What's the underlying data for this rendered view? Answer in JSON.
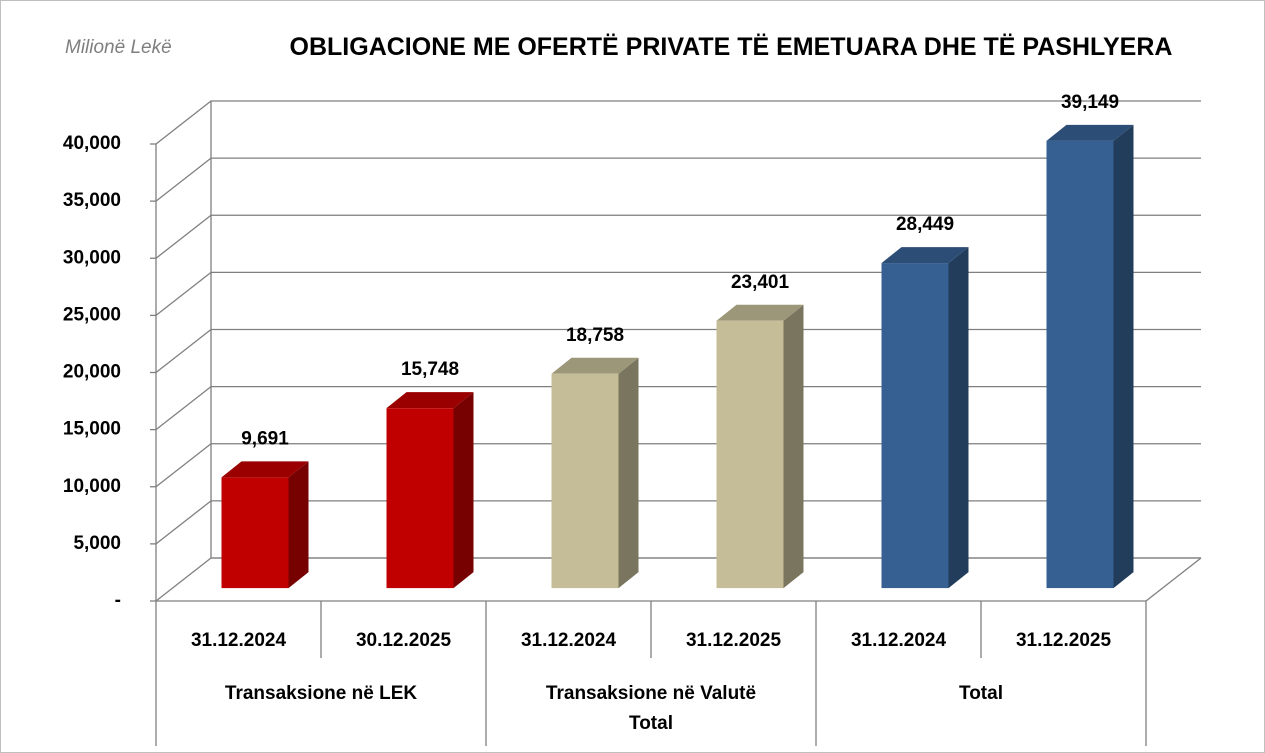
{
  "chart_data": {
    "type": "bar3d",
    "title": "OBLIGACIONE ME OFERTË PRIVATE TË EMETUARA DHE TË PASHLYERA",
    "y_label": "Milionë Lekë",
    "categories": [
      "31.12.2024",
      "30.12.2025",
      "31.12.2024",
      "31.12.2025",
      "31.12.2024",
      "31.12.2025"
    ],
    "groups": [
      "Transaksione në LEK",
      "Transaksione në Valutë Total",
      "Total"
    ],
    "values": [
      9691,
      15748,
      18758,
      23401,
      28449,
      39149
    ],
    "value_labels": [
      "9,691",
      "15,748",
      "18,758",
      "23,401",
      "28,449",
      "39,149"
    ],
    "colors": [
      "#c00000",
      "#c00000",
      "#c4bd97",
      "#c4bd97",
      "#376092",
      "#376092"
    ],
    "ylim": [
      0,
      40000
    ],
    "yticks": [
      {
        "value": 0,
        "label": "-"
      },
      {
        "value": 5000,
        "label": "5,000"
      },
      {
        "value": 10000,
        "label": "10,000"
      },
      {
        "value": 15000,
        "label": "15,000"
      },
      {
        "value": 20000,
        "label": "20,000"
      },
      {
        "value": 25000,
        "label": "25,000"
      },
      {
        "value": 30000,
        "label": "30,000"
      },
      {
        "value": 35000,
        "label": "35,000"
      },
      {
        "value": 40000,
        "label": "40,000"
      }
    ],
    "grid": true
  }
}
